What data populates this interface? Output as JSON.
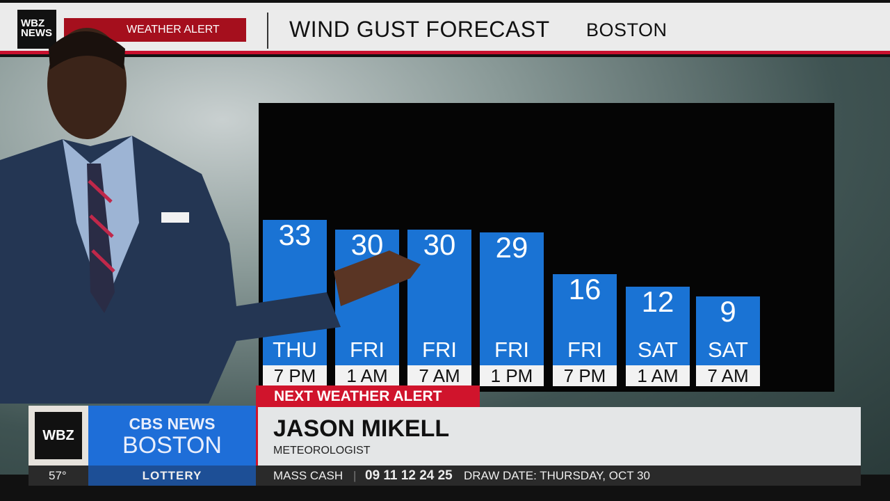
{
  "header": {
    "logo": "WBZ NEWS",
    "alert_badge": "WEATHER ALERT",
    "title": "WIND GUST FORECAST",
    "city": "BOSTON"
  },
  "chart_data": {
    "type": "bar",
    "categories": [
      [
        "THU",
        "7 PM"
      ],
      [
        "FRI",
        "1 AM"
      ],
      [
        "FRI",
        "7 AM"
      ],
      [
        "FRI",
        "1 PM"
      ],
      [
        "FRI",
        "7 PM"
      ],
      [
        "SAT",
        "1 AM"
      ],
      [
        "SAT",
        "7 AM"
      ]
    ],
    "values": [
      33,
      30,
      30,
      29,
      16,
      12,
      9
    ],
    "color": "#1a73d4"
  },
  "lower_third": {
    "banner": "NEXT WEATHER ALERT",
    "station": "WBZ",
    "network": "CBS NEWS",
    "network_city": "BOSTON",
    "name": "JASON MIKELL",
    "role": "METEOROLOGIST"
  },
  "ticker": {
    "temp": "57°",
    "section": "LOTTERY",
    "game": "MASS CASH",
    "numbers": "09 11 12 24 25",
    "draw_date": "DRAW DATE: THURSDAY, OCT 30"
  }
}
